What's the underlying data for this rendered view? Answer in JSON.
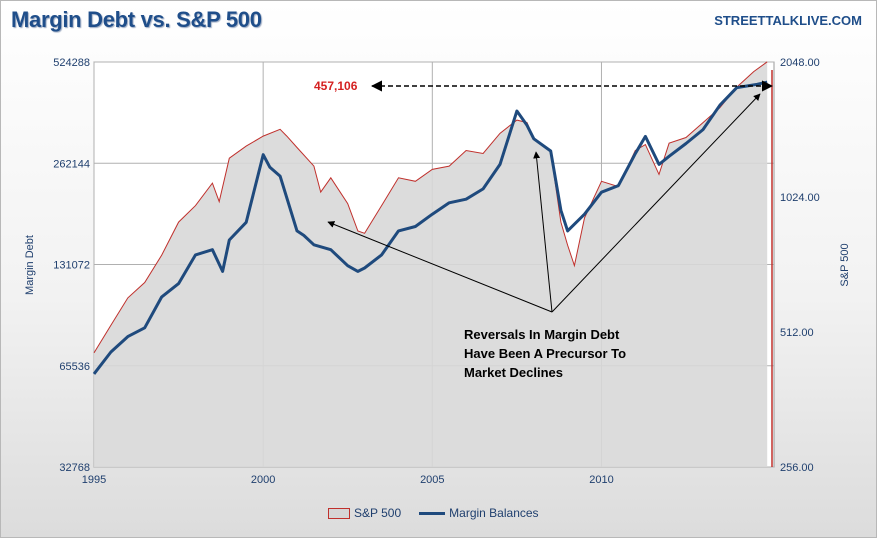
{
  "header": {
    "title": "Margin Debt vs. S&P 500",
    "brand": "STREETTALKLIVE.COM"
  },
  "legend": {
    "sp500": "S&P 500",
    "margin": "Margin Balances"
  },
  "chart_data": {
    "type": "line",
    "title": "Margin Debt vs. S&P 500",
    "ylabel": "Margin Debt",
    "y2label": "S&P 500",
    "x_ticks": [
      "1995",
      "2000",
      "2005",
      "2010"
    ],
    "y_ticks": [
      "32768",
      "65536",
      "131072",
      "262144",
      "524288"
    ],
    "y2_ticks": [
      "256.00",
      "512.00",
      "1024.00",
      "2048.00"
    ],
    "xlim": [
      1995,
      2015.1
    ],
    "ylim": [
      32768,
      524288
    ],
    "y2lim": [
      256,
      2048
    ],
    "y_scale": "log2",
    "grid": true,
    "legend_position": "bottom",
    "annotations": {
      "value_label": "457,106",
      "note": "Reversals In Margin Debt Have Been A Precursor To Market Declines",
      "note_lines": [
        "Reversals In Margin Debt",
        "Have Been A Precursor To",
        "Market Declines"
      ]
    },
    "series": [
      {
        "name": "S&P 500",
        "axis": "right",
        "color": "#c0302c",
        "x": [
          1995.0,
          1995.5,
          1996.0,
          1996.5,
          1997.0,
          1997.5,
          1998.0,
          1998.5,
          1998.7,
          1999.0,
          1999.5,
          2000.0,
          2000.5,
          2000.7,
          2001.0,
          2001.5,
          2001.7,
          2002.0,
          2002.5,
          2002.8,
          2003.0,
          2003.5,
          2004.0,
          2004.5,
          2005.0,
          2005.5,
          2006.0,
          2006.5,
          2007.0,
          2007.5,
          2007.8,
          2008.0,
          2008.5,
          2008.8,
          2009.0,
          2009.2,
          2009.5,
          2010.0,
          2010.5,
          2011.0,
          2011.3,
          2011.7,
          2012.0,
          2012.5,
          2013.0,
          2013.5,
          2014.0,
          2014.5,
          2014.9
        ],
        "values": [
          460,
          530,
          610,
          660,
          760,
          900,
          980,
          1100,
          1000,
          1250,
          1330,
          1400,
          1450,
          1400,
          1320,
          1200,
          1050,
          1130,
          990,
          860,
          850,
          980,
          1130,
          1110,
          1180,
          1200,
          1300,
          1280,
          1420,
          1520,
          1500,
          1380,
          1290,
          900,
          800,
          720,
          920,
          1110,
          1080,
          1300,
          1340,
          1150,
          1350,
          1390,
          1500,
          1620,
          1800,
          1950,
          2050
        ]
      },
      {
        "name": "Margin Balances",
        "axis": "left",
        "color": "#1f4a7d",
        "x": [
          1995.0,
          1995.5,
          1996.0,
          1996.5,
          1997.0,
          1997.5,
          1998.0,
          1998.5,
          1998.8,
          1999.0,
          1999.5,
          2000.0,
          2000.2,
          2000.5,
          2001.0,
          2001.2,
          2001.5,
          2002.0,
          2002.5,
          2002.8,
          2003.0,
          2003.5,
          2004.0,
          2004.5,
          2005.0,
          2005.5,
          2006.0,
          2006.5,
          2007.0,
          2007.5,
          2007.8,
          2008.0,
          2008.5,
          2008.8,
          2009.0,
          2009.5,
          2010.0,
          2010.5,
          2011.0,
          2011.3,
          2011.7,
          2012.0,
          2012.5,
          2013.0,
          2013.5,
          2014.0,
          2014.3,
          2014.6,
          2014.9
        ],
        "values": [
          62000,
          72000,
          80000,
          85000,
          105000,
          115000,
          140000,
          145000,
          125000,
          155000,
          175000,
          278000,
          255000,
          240000,
          165000,
          160000,
          150000,
          145000,
          130000,
          125000,
          128000,
          140000,
          165000,
          170000,
          185000,
          200000,
          205000,
          220000,
          260000,
          375000,
          340000,
          310000,
          285000,
          190000,
          165000,
          185000,
          215000,
          225000,
          280000,
          315000,
          260000,
          275000,
          300000,
          330000,
          390000,
          440000,
          445000,
          450000,
          457000
        ]
      }
    ]
  }
}
